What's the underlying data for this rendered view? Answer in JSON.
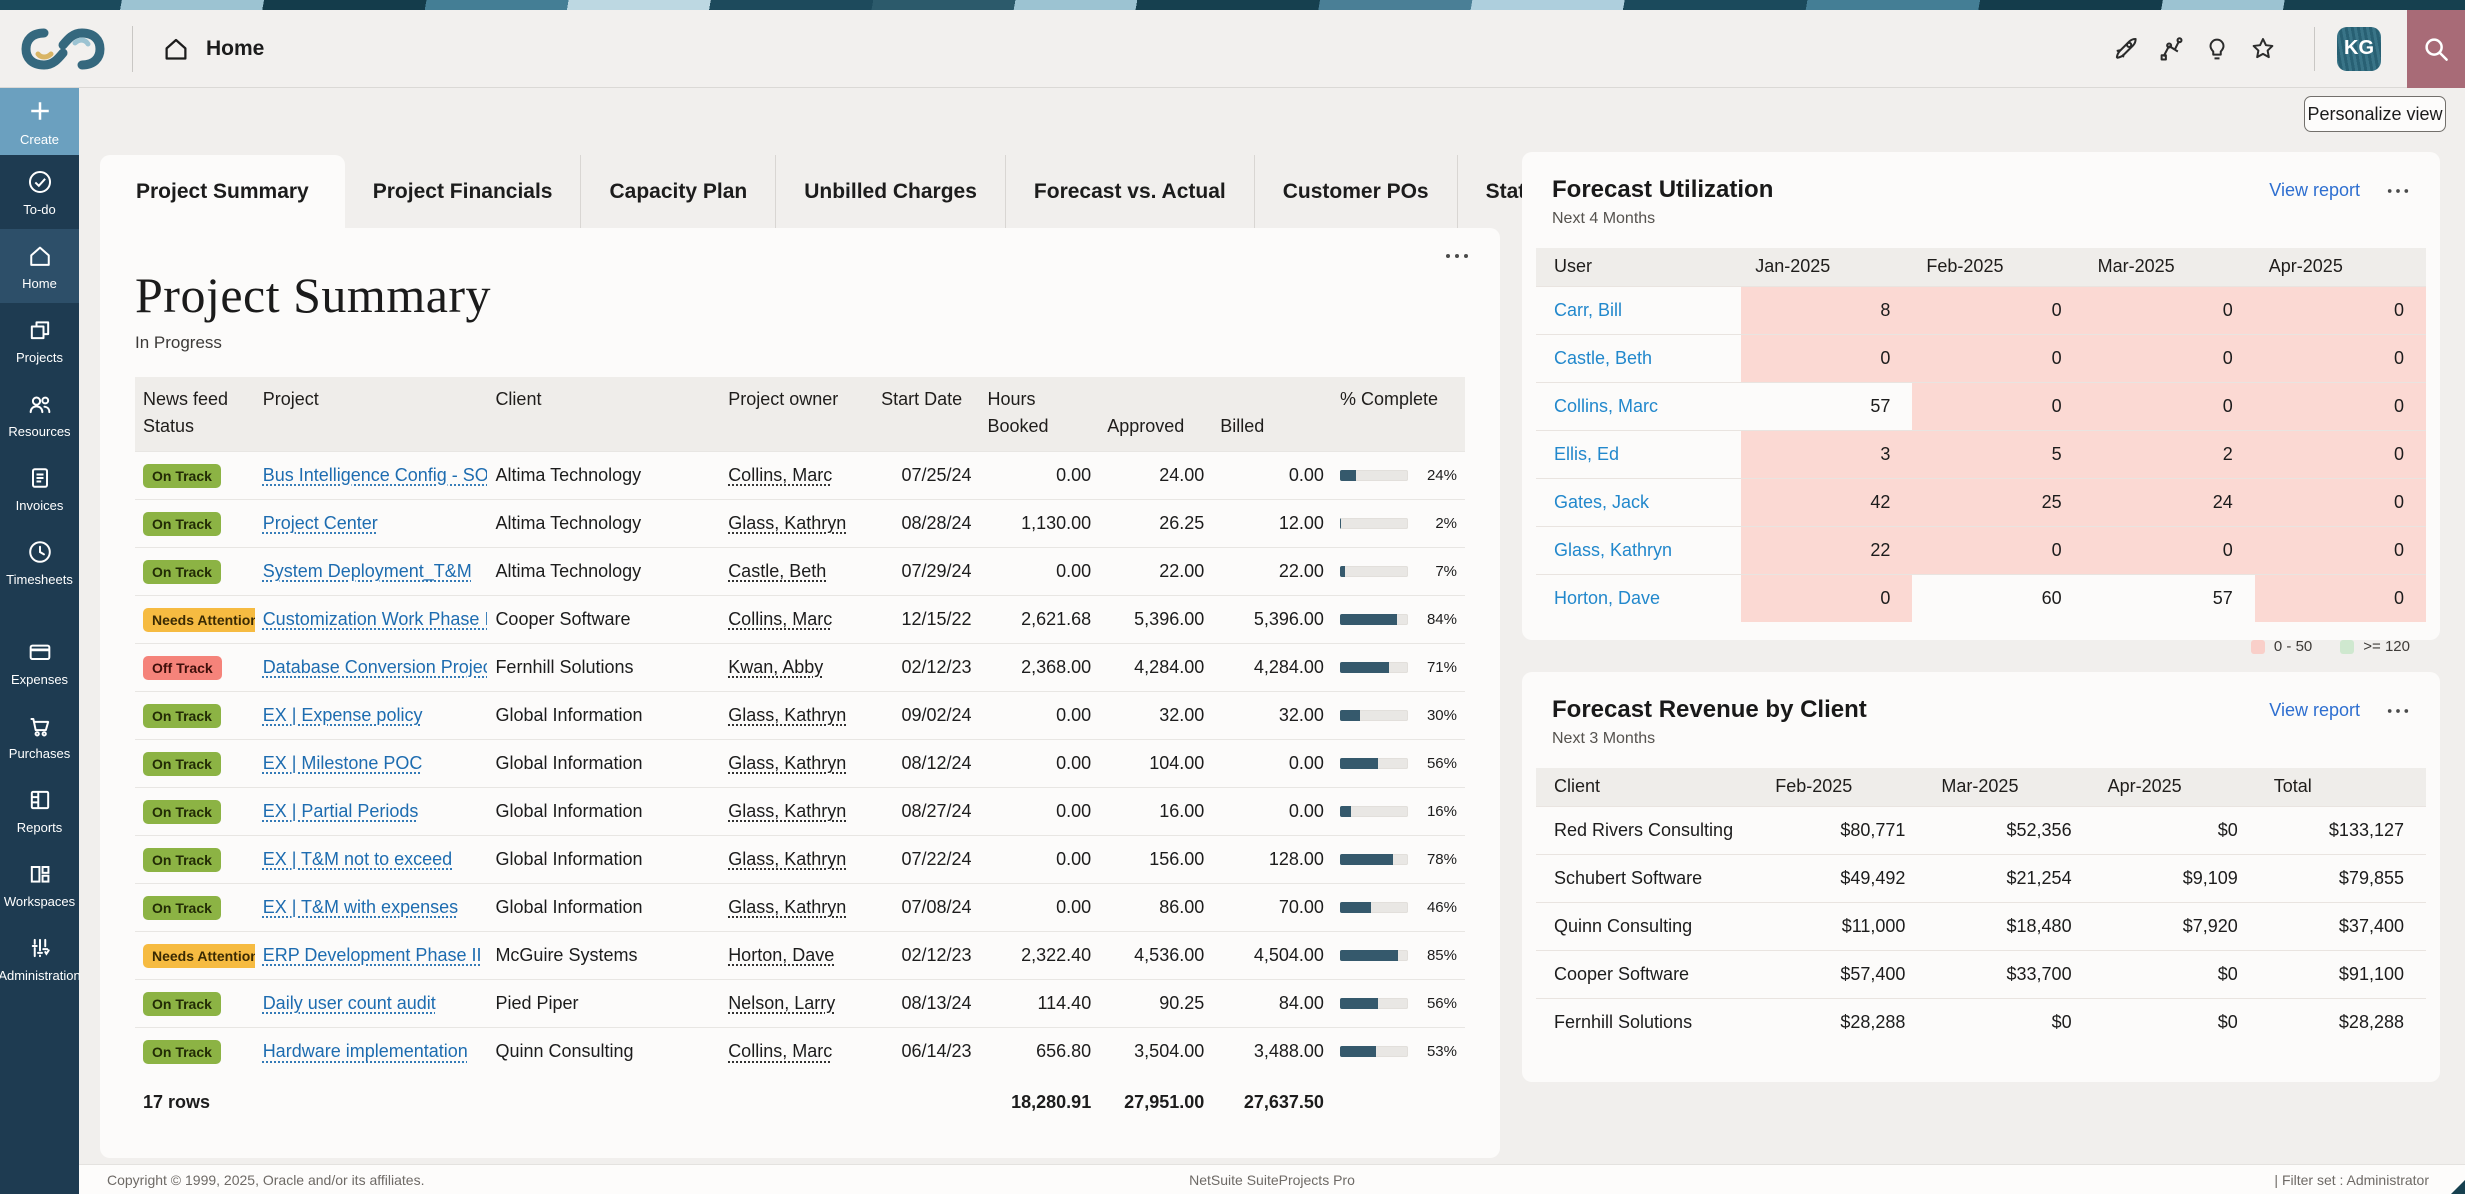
{
  "header": {
    "breadcrumb": "Home",
    "avatar_initials": "KG",
    "icon_names": [
      "rocket-icon",
      "automation-icon",
      "lightbulb-icon",
      "star-icon",
      "search-icon"
    ]
  },
  "sidebar": {
    "items": [
      {
        "label": "Create",
        "icon": "plus-icon"
      },
      {
        "label": "To-do",
        "icon": "check-circle-icon"
      },
      {
        "label": "Home",
        "icon": "home-icon",
        "active": true
      },
      {
        "label": "Projects",
        "icon": "projects-icon"
      },
      {
        "label": "Resources",
        "icon": "people-icon"
      },
      {
        "label": "Invoices",
        "icon": "invoice-icon"
      },
      {
        "label": "Timesheets",
        "icon": "clock-icon"
      },
      {
        "label": "Expenses",
        "icon": "card-icon"
      },
      {
        "label": "Purchases",
        "icon": "cart-icon"
      },
      {
        "label": "Reports",
        "icon": "report-grid-icon"
      },
      {
        "label": "Workspaces",
        "icon": "workspaces-icon"
      },
      {
        "label": "Administration",
        "icon": "sliders-icon"
      }
    ]
  },
  "main": {
    "personalize_button": "Personalize view",
    "tabs": [
      {
        "label": "Project Summary",
        "active": true
      },
      {
        "label": "Project Financials"
      },
      {
        "label": "Capacity Plan"
      },
      {
        "label": "Unbilled Charges"
      },
      {
        "label": "Forecast vs. Actual"
      },
      {
        "label": "Customer POs"
      },
      {
        "label": "Status Reports"
      }
    ],
    "project_summary": {
      "title": "Project Summary",
      "subtitle": "In Progress",
      "columns": {
        "news_feed": "News feed",
        "status": "Status",
        "project": "Project",
        "client": "Client",
        "owner": "Project owner",
        "start_date": "Start Date",
        "hours": "Hours",
        "booked": "Booked",
        "approved": "Approved",
        "billed": "Billed",
        "complete": "% Complete"
      },
      "rows": [
        {
          "status": "On Track",
          "project": "Bus Intelligence Config - SO_FF_POC",
          "client": "Altima Technology",
          "owner": "Collins, Marc",
          "start": "07/25/24",
          "booked": "0.00",
          "approved": "24.00",
          "billed": "0.00",
          "pct": 24,
          "pct_label": "24%"
        },
        {
          "status": "On Track",
          "project": "Project Center",
          "client": "Altima Technology",
          "owner": "Glass, Kathryn",
          "start": "08/28/24",
          "booked": "1,130.00",
          "approved": "26.25",
          "billed": "12.00",
          "pct": 2,
          "pct_label": "2%"
        },
        {
          "status": "On Track",
          "project": "System Deployment_T&M",
          "client": "Altima Technology",
          "owner": "Castle, Beth",
          "start": "07/29/24",
          "booked": "0.00",
          "approved": "22.00",
          "billed": "22.00",
          "pct": 7,
          "pct_label": "7%"
        },
        {
          "status": "Needs Attention",
          "project": "Customization Work Phase II",
          "client": "Cooper Software",
          "owner": "Collins, Marc",
          "start": "12/15/22",
          "booked": "2,621.68",
          "approved": "5,396.00",
          "billed": "5,396.00",
          "pct": 84,
          "pct_label": "84%"
        },
        {
          "status": "Off Track",
          "project": "Database Conversion Project Phase III",
          "client": "Fernhill Solutions",
          "owner": "Kwan, Abby",
          "start": "02/12/23",
          "booked": "2,368.00",
          "approved": "4,284.00",
          "billed": "4,284.00",
          "pct": 71,
          "pct_label": "71%"
        },
        {
          "status": "On Track",
          "project": "EX | Expense policy",
          "client": "Global Information",
          "owner": "Glass, Kathryn",
          "start": "09/02/24",
          "booked": "0.00",
          "approved": "32.00",
          "billed": "32.00",
          "pct": 30,
          "pct_label": "30%"
        },
        {
          "status": "On Track",
          "project": "EX | Milestone POC",
          "client": "Global Information",
          "owner": "Glass, Kathryn",
          "start": "08/12/24",
          "booked": "0.00",
          "approved": "104.00",
          "billed": "0.00",
          "pct": 56,
          "pct_label": "56%"
        },
        {
          "status": "On Track",
          "project": "EX | Partial Periods",
          "client": "Global Information",
          "owner": "Glass, Kathryn",
          "start": "08/27/24",
          "booked": "0.00",
          "approved": "16.00",
          "billed": "0.00",
          "pct": 16,
          "pct_label": "16%"
        },
        {
          "status": "On Track",
          "project": "EX | T&M not to exceed",
          "client": "Global Information",
          "owner": "Glass, Kathryn",
          "start": "07/22/24",
          "booked": "0.00",
          "approved": "156.00",
          "billed": "128.00",
          "pct": 78,
          "pct_label": "78%"
        },
        {
          "status": "On Track",
          "project": "EX | T&M with expenses",
          "client": "Global Information",
          "owner": "Glass, Kathryn",
          "start": "07/08/24",
          "booked": "0.00",
          "approved": "86.00",
          "billed": "70.00",
          "pct": 46,
          "pct_label": "46%"
        },
        {
          "status": "Needs Attention",
          "project": "ERP Development Phase II",
          "client": "McGuire Systems",
          "owner": "Horton, Dave",
          "start": "02/12/23",
          "booked": "2,322.40",
          "approved": "4,536.00",
          "billed": "4,504.00",
          "pct": 85,
          "pct_label": "85%"
        },
        {
          "status": "On Track",
          "project": "Daily user count audit",
          "client": "Pied Piper",
          "owner": "Nelson, Larry",
          "start": "08/13/24",
          "booked": "114.40",
          "approved": "90.25",
          "billed": "84.00",
          "pct": 56,
          "pct_label": "56%"
        },
        {
          "status": "On Track",
          "project": "Hardware implementation",
          "client": "Quinn Consulting",
          "owner": "Collins, Marc",
          "start": "06/14/23",
          "booked": "656.80",
          "approved": "3,504.00",
          "billed": "3,488.00",
          "pct": 53,
          "pct_label": "53%"
        }
      ],
      "summary": {
        "row_count": "17 rows",
        "booked": "18,280.91",
        "approved": "27,951.00",
        "billed": "27,637.50"
      }
    }
  },
  "forecast_utilization": {
    "title": "Forecast Utilization",
    "subtitle": "Next 4 Months",
    "view_report": "View report",
    "user_column": "User",
    "months": [
      "Jan-2025",
      "Feb-2025",
      "Mar-2025",
      "Apr-2025"
    ],
    "rows": [
      {
        "user": "Carr, Bill",
        "values": [
          8,
          0,
          0,
          0
        ]
      },
      {
        "user": "Castle, Beth",
        "values": [
          0,
          0,
          0,
          0
        ]
      },
      {
        "user": "Collins, Marc",
        "values": [
          57,
          0,
          0,
          0
        ]
      },
      {
        "user": "Ellis, Ed",
        "values": [
          3,
          5,
          2,
          0
        ]
      },
      {
        "user": "Gates, Jack",
        "values": [
          42,
          25,
          24,
          0
        ]
      },
      {
        "user": "Glass, Kathryn",
        "values": [
          22,
          0,
          0,
          0
        ]
      },
      {
        "user": "Horton, Dave",
        "values": [
          0,
          60,
          57,
          0
        ]
      }
    ],
    "legend": [
      {
        "label": "0 - 50",
        "band": "low"
      },
      {
        "label": ">= 120",
        "band": "high"
      }
    ]
  },
  "forecast_revenue": {
    "title": "Forecast Revenue by Client",
    "subtitle": "Next 3 Months",
    "view_report": "View report",
    "client_column": "Client",
    "months": [
      "Feb-2025",
      "Mar-2025",
      "Apr-2025",
      "Total"
    ],
    "rows": [
      {
        "client": "Red Rivers Consulting",
        "values": [
          "$80,771",
          "$52,356",
          "$0",
          "$133,127"
        ]
      },
      {
        "client": "Schubert Software",
        "values": [
          "$49,492",
          "$21,254",
          "$9,109",
          "$79,855"
        ]
      },
      {
        "client": "Quinn Consulting",
        "values": [
          "$11,000",
          "$18,480",
          "$7,920",
          "$37,400"
        ]
      },
      {
        "client": "Cooper Software",
        "values": [
          "$57,400",
          "$33,700",
          "$0",
          "$91,100"
        ]
      },
      {
        "client": "Fernhill Solutions",
        "values": [
          "$28,288",
          "$0",
          "$0",
          "$28,288"
        ]
      }
    ]
  },
  "footer": {
    "copyright": "Copyright © 1999, 2025, Oracle and/or its affiliates.",
    "product": "NetSuite SuiteProjects Pro",
    "filter_set": "| Filter set : Administrator"
  },
  "colors": {
    "badge_on_track": "#8cb344",
    "badge_needs_attention": "#f6bb41",
    "badge_off_track": "#f5837a",
    "utilization_low_cell": "#fbd9d3",
    "utilization_high_cell": "#cfe8cf",
    "progress_fill": "#35596c",
    "project_link": "#1d6cb0",
    "user_link": "#2288cc",
    "view_report_link": "#2e6fd0",
    "sidebar": "#1e3b51",
    "sidebar_create": "#6ba0bf",
    "search_button": "#a86b77",
    "avatar": "#2d6b80"
  }
}
